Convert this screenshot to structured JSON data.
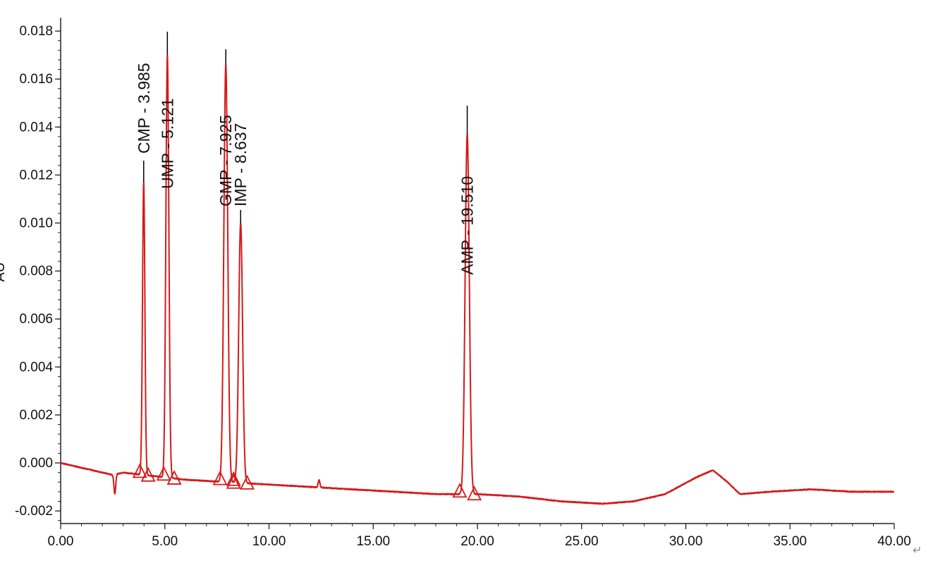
{
  "chart_data": {
    "type": "line",
    "title": "",
    "xlabel": "",
    "ylabel": "AU",
    "xlim": [
      0,
      40
    ],
    "ylim": [
      -0.0025,
      0.0182
    ],
    "grid": false,
    "x_ticks": [
      "0.00",
      "5.00",
      "10.00",
      "15.00",
      "20.00",
      "25.00",
      "30.00",
      "35.00",
      "40.00"
    ],
    "y_ticks": [
      "-0.002",
      "0.000",
      "0.002",
      "0.004",
      "0.006",
      "0.008",
      "0.010",
      "0.012",
      "0.014",
      "0.016",
      "0.018"
    ],
    "trace_color": "#d41a1a",
    "label_line_color": "#000000",
    "baseline": [
      [
        0,
        0.0
      ],
      [
        1,
        -0.0002
      ],
      [
        2,
        -0.0004
      ],
      [
        2.5,
        -0.0005
      ],
      [
        3,
        -0.0004
      ],
      [
        4,
        -0.0005
      ],
      [
        6,
        -0.0007
      ],
      [
        8,
        -0.0008
      ],
      [
        10,
        -0.0009
      ],
      [
        12,
        -0.001
      ],
      [
        14,
        -0.0011
      ],
      [
        16,
        -0.0012
      ],
      [
        18,
        -0.0013
      ],
      [
        20,
        -0.0013
      ],
      [
        22,
        -0.0014
      ],
      [
        24,
        -0.0016
      ],
      [
        26,
        -0.0017
      ],
      [
        27.5,
        -0.0016
      ],
      [
        29,
        -0.0013
      ],
      [
        30.5,
        -0.0006
      ],
      [
        31.3,
        -0.0003
      ],
      [
        32,
        -0.0008
      ],
      [
        32.6,
        -0.0013
      ],
      [
        34,
        -0.0012
      ],
      [
        36,
        -0.0011
      ],
      [
        38,
        -0.0012
      ],
      [
        40,
        -0.0012
      ]
    ],
    "baseline_features": [
      {
        "time": 2.6,
        "height": -0.0008
      },
      {
        "time": 12.4,
        "height": 0.0003
      }
    ],
    "peaks": [
      {
        "name": "CMP",
        "time": 3.985,
        "height": 0.0117,
        "label": "CMP - 3.985",
        "start": 3.8,
        "end": 4.2
      },
      {
        "name": "UMP",
        "time": 5.121,
        "height": 0.017,
        "label": "UMP - 5.121",
        "start": 4.95,
        "end": 5.45
      },
      {
        "name": "GMP",
        "time": 7.925,
        "height": 0.0166,
        "label": "GMP - 7.925",
        "start": 7.65,
        "end": 8.3
      },
      {
        "name": "IMP",
        "time": 8.637,
        "height": 0.01,
        "label": "IMP - 8.637",
        "start": 8.3,
        "end": 8.95
      },
      {
        "name": "AMP",
        "time": 19.51,
        "height": 0.0137,
        "label": "AMP - 19.510",
        "start": 19.15,
        "end": 19.85
      }
    ]
  },
  "trailing_mark": "↵"
}
